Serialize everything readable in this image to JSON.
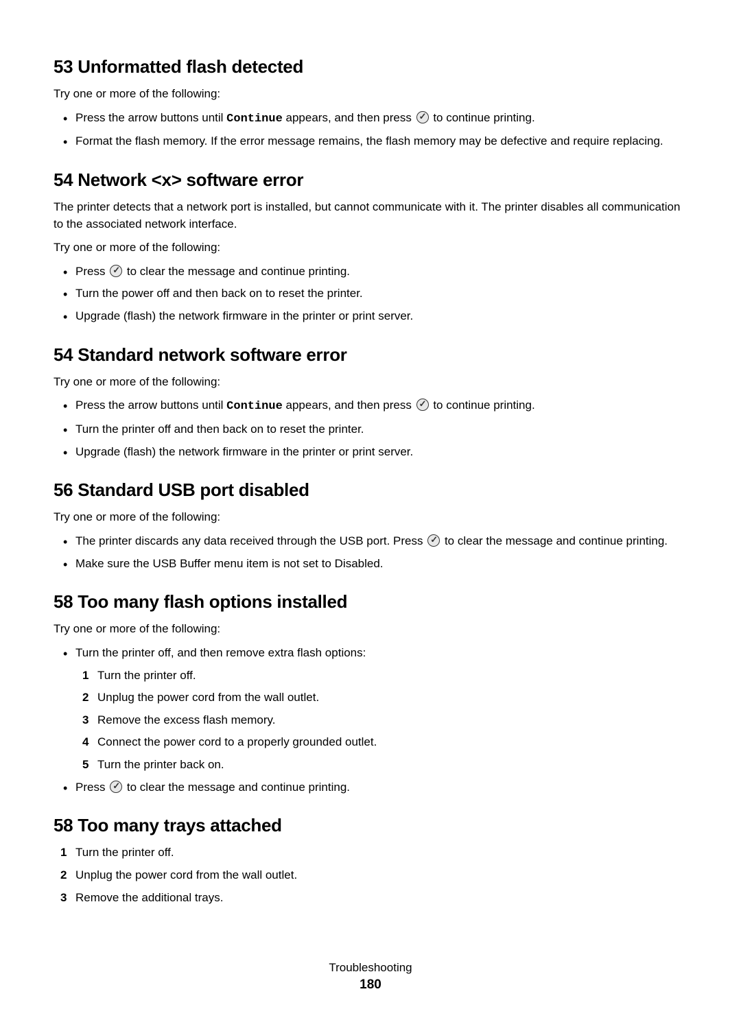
{
  "sections": [
    {
      "heading": "53 Unformatted flash detected",
      "intro": "Try one or more of the following:",
      "bullets": [
        [
          {
            "t": "text",
            "v": "Press the arrow buttons until "
          },
          {
            "t": "mono",
            "v": "Continue"
          },
          {
            "t": "text",
            "v": " appears, and then press "
          },
          {
            "t": "icon"
          },
          {
            "t": "text",
            "v": " to continue printing."
          }
        ],
        [
          {
            "t": "text",
            "v": "Format the flash memory. If the error message remains, the flash memory may be defective and require replacing."
          }
        ]
      ]
    },
    {
      "heading": "54 Network <x> software error",
      "paragraphs": [
        "The printer detects that a network port is installed, but cannot communicate with it. The printer disables all communication to the associated network interface.",
        "Try one or more of the following:"
      ],
      "bullets": [
        [
          {
            "t": "text",
            "v": "Press "
          },
          {
            "t": "icon"
          },
          {
            "t": "text",
            "v": " to clear the message and continue printing."
          }
        ],
        [
          {
            "t": "text",
            "v": "Turn the power off and then back on to reset the printer."
          }
        ],
        [
          {
            "t": "text",
            "v": "Upgrade (flash) the network firmware in the printer or print server."
          }
        ]
      ]
    },
    {
      "heading": "54 Standard network software error",
      "intro": "Try one or more of the following:",
      "bullets": [
        [
          {
            "t": "text",
            "v": "Press the arrow buttons until "
          },
          {
            "t": "mono",
            "v": "Continue"
          },
          {
            "t": "text",
            "v": " appears, and then press "
          },
          {
            "t": "icon"
          },
          {
            "t": "text",
            "v": " to continue printing."
          }
        ],
        [
          {
            "t": "text",
            "v": "Turn the printer off and then back on to reset the printer."
          }
        ],
        [
          {
            "t": "text",
            "v": "Upgrade (flash) the network firmware in the printer or print server."
          }
        ]
      ]
    },
    {
      "heading": "56 Standard USB port disabled",
      "intro": "Try one or more of the following:",
      "bullets": [
        [
          {
            "t": "text",
            "v": "The printer discards any data received through the USB port. Press "
          },
          {
            "t": "icon"
          },
          {
            "t": "text",
            "v": " to clear the message and continue printing."
          }
        ],
        [
          {
            "t": "text",
            "v": "Make sure the USB Buffer menu item is not set to Disabled."
          }
        ]
      ]
    },
    {
      "heading": "58 Too many flash options installed",
      "intro": "Try one or more of the following:",
      "bullets": [
        {
          "fragments": [
            {
              "t": "text",
              "v": "Turn the printer off, and then remove extra flash options:"
            }
          ],
          "steps": [
            "Turn the printer off.",
            "Unplug the power cord from the wall outlet.",
            "Remove the excess flash memory.",
            "Connect the power cord to a properly grounded outlet.",
            "Turn the printer back on."
          ]
        },
        [
          {
            "t": "text",
            "v": "Press "
          },
          {
            "t": "icon"
          },
          {
            "t": "text",
            "v": " to clear the message and continue printing."
          }
        ]
      ]
    },
    {
      "heading": "58 Too many trays attached",
      "ordered": [
        "Turn the printer off.",
        "Unplug the power cord from the wall outlet.",
        "Remove the additional trays."
      ]
    }
  ],
  "footer": {
    "title": "Troubleshooting",
    "page": "180"
  }
}
